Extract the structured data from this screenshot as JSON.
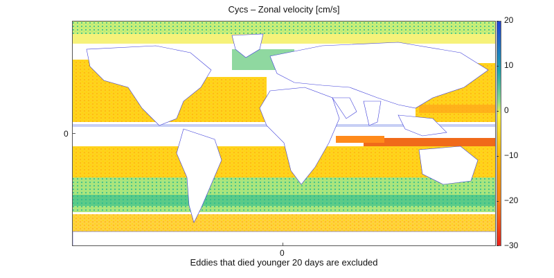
{
  "title": "Cycs – Zonal velocity [cm/s]",
  "xlabel": "Eddies that died younger 20 days are excluded",
  "y_tick_label": "0",
  "x_tick_label": "0",
  "colorbar": {
    "min": -30,
    "max": 20,
    "ticks": [
      "20",
      "10",
      "0",
      "−10",
      "−20",
      "−30"
    ],
    "tick_values": [
      20,
      10,
      0,
      -10,
      -20,
      -30
    ],
    "colors": {
      "positive_max": "#1f3fd6",
      "positive_mid": "#1aa3b0",
      "zero": "#fff23c",
      "negative_mid": "#ffb000",
      "negative_max": "#e8201a"
    }
  },
  "map": {
    "land_color": "#ffffff",
    "coastline_color": "#3b3bd9"
  }
}
